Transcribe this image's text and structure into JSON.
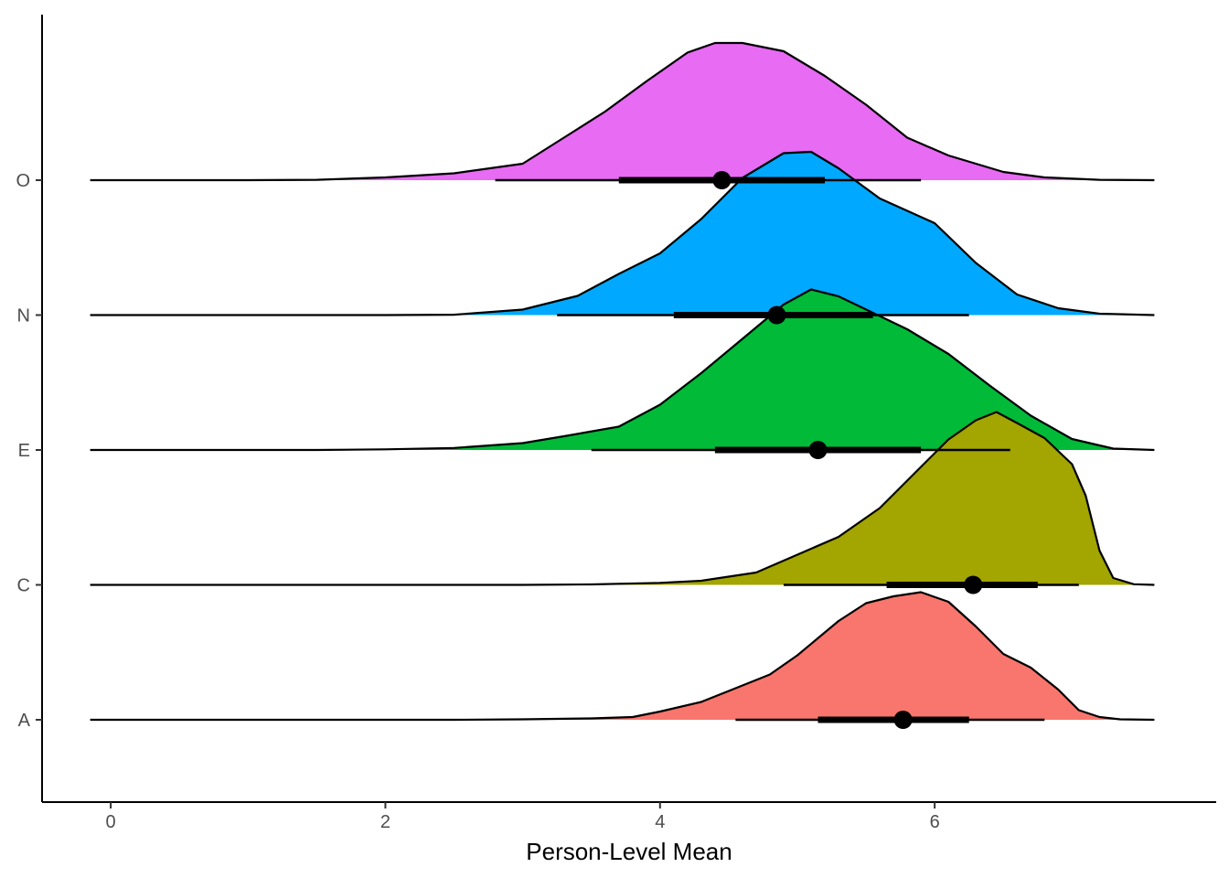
{
  "chart_data": {
    "type": "ridgeline",
    "title": "",
    "xlabel": "Person-Level Mean",
    "ylabel": "",
    "xlim": [
      -0.5,
      8.05
    ],
    "x_ticks": [
      0,
      2,
      4,
      6
    ],
    "grid": false,
    "legend": "none",
    "categories": [
      "A",
      "C",
      "E",
      "N",
      "O"
    ],
    "series": [
      {
        "name": "A",
        "color": "#F8766D",
        "range": [
          -0.15,
          7.6
        ],
        "interval_66": [
          5.15,
          6.25
        ],
        "interval_95": [
          4.55,
          6.8
        ],
        "point": 5.77,
        "density": [
          [
            -0.15,
            0
          ],
          [
            2.5,
            0
          ],
          [
            3,
            0.003
          ],
          [
            3.5,
            0.01
          ],
          [
            3.8,
            0.02
          ],
          [
            4,
            0.06
          ],
          [
            4.3,
            0.13
          ],
          [
            4.5,
            0.21
          ],
          [
            4.8,
            0.33
          ],
          [
            5,
            0.47
          ],
          [
            5.3,
            0.72
          ],
          [
            5.5,
            0.85
          ],
          [
            5.7,
            0.9
          ],
          [
            5.9,
            0.93
          ],
          [
            6.1,
            0.86
          ],
          [
            6.3,
            0.68
          ],
          [
            6.5,
            0.48
          ],
          [
            6.7,
            0.38
          ],
          [
            6.9,
            0.22
          ],
          [
            7.05,
            0.07
          ],
          [
            7.2,
            0.02
          ],
          [
            7.35,
            0.003
          ],
          [
            7.6,
            0
          ]
        ]
      },
      {
        "name": "C",
        "color": "#A3A500",
        "range": [
          -0.15,
          7.6
        ],
        "interval_66": [
          5.65,
          6.75
        ],
        "interval_95": [
          4.9,
          7.05
        ],
        "point": 6.28,
        "density": [
          [
            -0.15,
            0
          ],
          [
            3,
            0
          ],
          [
            3.5,
            0.003
          ],
          [
            4,
            0.015
          ],
          [
            4.3,
            0.03
          ],
          [
            4.7,
            0.09
          ],
          [
            5,
            0.22
          ],
          [
            5.3,
            0.35
          ],
          [
            5.6,
            0.56
          ],
          [
            5.9,
            0.86
          ],
          [
            6.1,
            1.06
          ],
          [
            6.3,
            1.2
          ],
          [
            6.45,
            1.26
          ],
          [
            6.6,
            1.18
          ],
          [
            6.8,
            1.07
          ],
          [
            7,
            0.88
          ],
          [
            7.1,
            0.65
          ],
          [
            7.2,
            0.25
          ],
          [
            7.3,
            0.05
          ],
          [
            7.45,
            0.005
          ],
          [
            7.6,
            0
          ]
        ]
      },
      {
        "name": "E",
        "color": "#00BA38",
        "range": [
          -0.15,
          7.6
        ],
        "interval_66": [
          4.4,
          5.9
        ],
        "interval_95": [
          3.5,
          6.55
        ],
        "point": 5.15,
        "density": [
          [
            -0.15,
            0
          ],
          [
            1.5,
            0
          ],
          [
            2,
            0.005
          ],
          [
            2.5,
            0.015
          ],
          [
            3,
            0.05
          ],
          [
            3.3,
            0.1
          ],
          [
            3.7,
            0.17
          ],
          [
            4,
            0.33
          ],
          [
            4.3,
            0.56
          ],
          [
            4.6,
            0.81
          ],
          [
            4.9,
            1.06
          ],
          [
            5.1,
            1.17
          ],
          [
            5.3,
            1.12
          ],
          [
            5.55,
            1.0
          ],
          [
            5.8,
            0.88
          ],
          [
            6.1,
            0.7
          ],
          [
            6.4,
            0.47
          ],
          [
            6.7,
            0.25
          ],
          [
            7,
            0.08
          ],
          [
            7.3,
            0.01
          ],
          [
            7.6,
            0
          ]
        ]
      },
      {
        "name": "N",
        "color": "#00A9FF",
        "range": [
          -0.15,
          7.6
        ],
        "interval_66": [
          4.1,
          5.55
        ],
        "interval_95": [
          3.25,
          6.25
        ],
        "point": 4.85,
        "density": [
          [
            -0.15,
            0
          ],
          [
            2,
            0
          ],
          [
            2.5,
            0.003
          ],
          [
            3,
            0.04
          ],
          [
            3.4,
            0.14
          ],
          [
            3.7,
            0.3
          ],
          [
            4,
            0.45
          ],
          [
            4.3,
            0.7
          ],
          [
            4.6,
            1.0
          ],
          [
            4.9,
            1.18
          ],
          [
            5.1,
            1.19
          ],
          [
            5.3,
            1.07
          ],
          [
            5.6,
            0.85
          ],
          [
            6,
            0.67
          ],
          [
            6.3,
            0.38
          ],
          [
            6.6,
            0.15
          ],
          [
            6.9,
            0.05
          ],
          [
            7.2,
            0.01
          ],
          [
            7.6,
            0
          ]
        ]
      },
      {
        "name": "O",
        "color": "#E76BF3",
        "range": [
          -0.15,
          7.6
        ],
        "interval_66": [
          3.7,
          5.2
        ],
        "interval_95": [
          2.8,
          5.9
        ],
        "point": 4.45,
        "density": [
          [
            -0.15,
            0
          ],
          [
            1,
            0
          ],
          [
            1.5,
            0.003
          ],
          [
            2,
            0.02
          ],
          [
            2.5,
            0.05
          ],
          [
            3,
            0.12
          ],
          [
            3.3,
            0.31
          ],
          [
            3.6,
            0.5
          ],
          [
            3.9,
            0.72
          ],
          [
            4.2,
            0.93
          ],
          [
            4.4,
            1.0
          ],
          [
            4.6,
            1.0
          ],
          [
            4.9,
            0.94
          ],
          [
            5.2,
            0.76
          ],
          [
            5.5,
            0.55
          ],
          [
            5.8,
            0.31
          ],
          [
            6.1,
            0.18
          ],
          [
            6.5,
            0.06
          ],
          [
            6.8,
            0.02
          ],
          [
            7.2,
            0.003
          ],
          [
            7.6,
            0
          ]
        ]
      }
    ]
  }
}
